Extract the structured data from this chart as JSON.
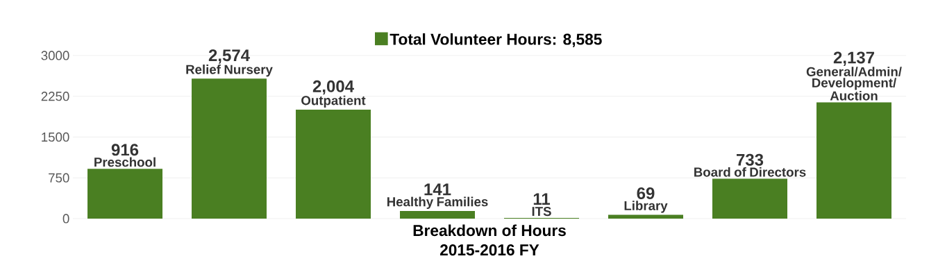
{
  "chart_data": {
    "type": "bar",
    "xlabel": "Breakdown of Hours",
    "annotations": [
      "2015-2016 FY"
    ],
    "categories": [
      "Preschool",
      "Relief Nursery",
      "Outpatient",
      "Healthy Families",
      "ITS",
      "Library",
      "Board of Directors",
      "General/Admin/Development/Auction"
    ],
    "series": [
      {
        "name": "Total Volunteer Hours: 8,585",
        "color": "#4a7f22",
        "values": [
          916,
          2574,
          2004,
          141,
          11,
          69,
          733,
          2137
        ],
        "value_labels": [
          "916",
          "2,574",
          "2,004",
          "141",
          "11",
          "69",
          "733",
          "2,137"
        ]
      }
    ],
    "ylim": [
      0,
      3000
    ],
    "yticks": [
      0,
      750,
      1500,
      2250,
      3000
    ],
    "grid": "y",
    "legend": "top",
    "tick_labels": "y"
  }
}
